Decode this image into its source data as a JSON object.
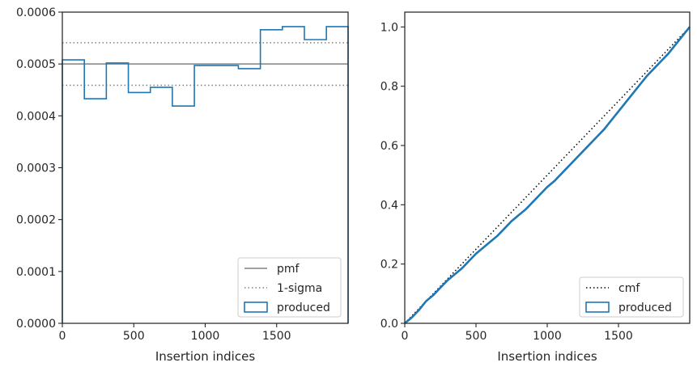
{
  "chart_data": [
    {
      "type": "line",
      "xlabel": "Insertion indices",
      "ylabel": "",
      "xlim": [
        0,
        2000
      ],
      "ylim": [
        0,
        0.0006
      ],
      "xticks": [
        0,
        500,
        1000,
        1500
      ],
      "xtick_labels": [
        "0",
        "500",
        "1000",
        "1500"
      ],
      "yticks": [
        0,
        0.0001,
        0.0002,
        0.0003,
        0.0004,
        0.0005,
        0.0006
      ],
      "ytick_labels": [
        "0.0000",
        "0.0001",
        "0.0002",
        "0.0003",
        "0.0004",
        "0.0005",
        "0.0006"
      ],
      "grid": false,
      "legend_position": "lower-right",
      "series": [
        {
          "name": "pmf",
          "kind": "hline",
          "y": 0.0005,
          "color": "#808080",
          "dash": "solid"
        },
        {
          "name": "1-sigma",
          "kind": "hlines",
          "y": [
            0.000459,
            0.000541
          ],
          "color": "#808080",
          "dash": "dotted"
        },
        {
          "name": "produced",
          "kind": "step-histogram",
          "color": "#1f77b4",
          "bin_edges": [
            0,
            154,
            308,
            462,
            616,
            770,
            924,
            1078,
            1232,
            1386,
            1540,
            1694,
            1848,
            2000
          ],
          "values": [
            0.000508,
            0.000433,
            0.000502,
            0.000445,
            0.000455,
            0.000419,
            0.000497,
            0.000497,
            0.000491,
            0.000566,
            0.000572,
            0.000547,
            0.000572
          ]
        }
      ],
      "legend": [
        {
          "label": "pmf",
          "style": "line",
          "color": "#808080",
          "dash": "solid"
        },
        {
          "label": "1-sigma",
          "style": "line",
          "color": "#808080",
          "dash": "dotted"
        },
        {
          "label": "produced",
          "style": "box",
          "color": "#1f77b4"
        }
      ]
    },
    {
      "type": "line",
      "xlabel": "Insertion indices",
      "ylabel": "",
      "xlim": [
        0,
        2000
      ],
      "ylim": [
        0,
        1.05
      ],
      "xticks": [
        0,
        500,
        1000,
        1500
      ],
      "xtick_labels": [
        "0",
        "500",
        "1000",
        "1500"
      ],
      "yticks": [
        0,
        0.2,
        0.4,
        0.6,
        0.8,
        1.0
      ],
      "ytick_labels": [
        "0.0",
        "0.2",
        "0.4",
        "0.6",
        "0.8",
        "1.0"
      ],
      "grid": false,
      "legend_position": "lower-right",
      "series": [
        {
          "name": "cmf",
          "kind": "line",
          "x": [
            0,
            2000
          ],
          "y": [
            0,
            1.0
          ],
          "color": "#000000",
          "dash": "dotted"
        },
        {
          "name": "produced",
          "kind": "line",
          "color": "#1f77b4",
          "x": [
            0,
            50,
            100,
            150,
            200,
            250,
            300,
            350,
            400,
            450,
            500,
            550,
            600,
            650,
            700,
            750,
            800,
            850,
            900,
            950,
            1000,
            1050,
            1100,
            1150,
            1200,
            1250,
            1300,
            1350,
            1400,
            1450,
            1500,
            1550,
            1600,
            1650,
            1700,
            1750,
            1800,
            1850,
            1900,
            1950,
            2000
          ],
          "y": [
            0,
            0.02,
            0.045,
            0.075,
            0.095,
            0.12,
            0.145,
            0.165,
            0.185,
            0.21,
            0.235,
            0.255,
            0.275,
            0.295,
            0.32,
            0.345,
            0.365,
            0.385,
            0.41,
            0.435,
            0.46,
            0.48,
            0.505,
            0.53,
            0.555,
            0.58,
            0.605,
            0.63,
            0.655,
            0.685,
            0.715,
            0.745,
            0.775,
            0.805,
            0.835,
            0.86,
            0.885,
            0.91,
            0.94,
            0.97,
            1.0
          ]
        }
      ],
      "legend": [
        {
          "label": "cmf",
          "style": "line",
          "color": "#000000",
          "dash": "dotted"
        },
        {
          "label": "produced",
          "style": "box",
          "color": "#1f77b4"
        }
      ]
    }
  ]
}
